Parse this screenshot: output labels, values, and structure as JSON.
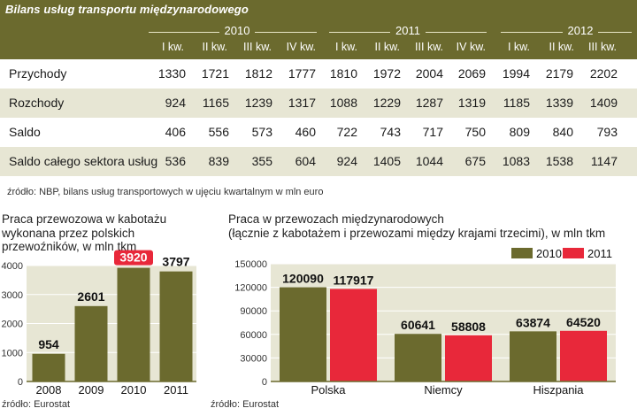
{
  "table": {
    "title": "Bilans usług transportu międzynarodowego",
    "years": [
      "2010",
      "2011",
      "2012"
    ],
    "quarters": [
      "I kw.",
      "II kw.",
      "III kw.",
      "IV kw.",
      "I kw.",
      "II kw.",
      "III kw.",
      "IV kw.",
      "I kw.",
      "II kw.",
      "III kw."
    ],
    "rows": [
      {
        "label": "Przychody",
        "values": [
          "1330",
          "1721",
          "1812",
          "1777",
          "1810",
          "1972",
          "2004",
          "2069",
          "1994",
          "2179",
          "2202"
        ]
      },
      {
        "label": "Rozchody",
        "values": [
          "924",
          "1165",
          "1239",
          "1317",
          "1088",
          "1229",
          "1287",
          "1319",
          "1185",
          "1339",
          "1409"
        ]
      },
      {
        "label": "Saldo",
        "values": [
          "406",
          "556",
          "573",
          "460",
          "722",
          "743",
          "717",
          "750",
          "809",
          "840",
          "793"
        ]
      },
      {
        "label": "Saldo całego sektora usług",
        "values": [
          "536",
          "839",
          "355",
          "604",
          "924",
          "1405",
          "1044",
          "675",
          "1083",
          "1538",
          "1147"
        ]
      }
    ],
    "source": "źródło: NBP, bilans usług transportowych w ujęciu kwartalnym w mln euro"
  },
  "colors": {
    "header_bg": "#6b6a2e",
    "row_shade": "#e7e6d4",
    "bar_2010": "#6b6a2e",
    "bar_2011": "#e8283a",
    "highlight": "#e8283a"
  },
  "chart_data": [
    {
      "type": "bar",
      "title": "Praca przewozowa w kabotażu wykonana przez polskich przewoźników, w mln tkm",
      "categories": [
        "2008",
        "2009",
        "2010",
        "2011"
      ],
      "values": [
        954,
        2601,
        3920,
        3797
      ],
      "value_labels": [
        "954",
        "2601",
        "3920",
        "3797"
      ],
      "highlight_index": 2,
      "ylim": [
        0,
        4000
      ],
      "yticks": [
        0,
        1000,
        2000,
        3000,
        4000
      ],
      "ytick_labels": [
        "0",
        "1000",
        "2000",
        "3000",
        "4000"
      ],
      "source": "źródło: Eurostat"
    },
    {
      "type": "bar",
      "title": "Praca w przewozach międzynarodowych",
      "subtitle": "(łącznie z kabotażem i przewozami między krajami trzecimi), w mln tkm",
      "categories": [
        "Polska",
        "Niemcy",
        "Hiszpania"
      ],
      "series": [
        {
          "name": "2010",
          "values": [
            120090,
            60641,
            63874
          ],
          "value_labels": [
            "120090",
            "60641",
            "63874"
          ]
        },
        {
          "name": "2011",
          "values": [
            117917,
            58808,
            64520
          ],
          "value_labels": [
            "117917",
            "58808",
            "64520"
          ]
        }
      ],
      "ylim": [
        0,
        150000
      ],
      "yticks": [
        0,
        30000,
        60000,
        90000,
        120000,
        150000
      ],
      "ytick_labels": [
        "0",
        "30000",
        "60000",
        "90000",
        "120000",
        "150000"
      ],
      "legend_position": "top-right",
      "source": "źródło: Eurostat"
    }
  ]
}
